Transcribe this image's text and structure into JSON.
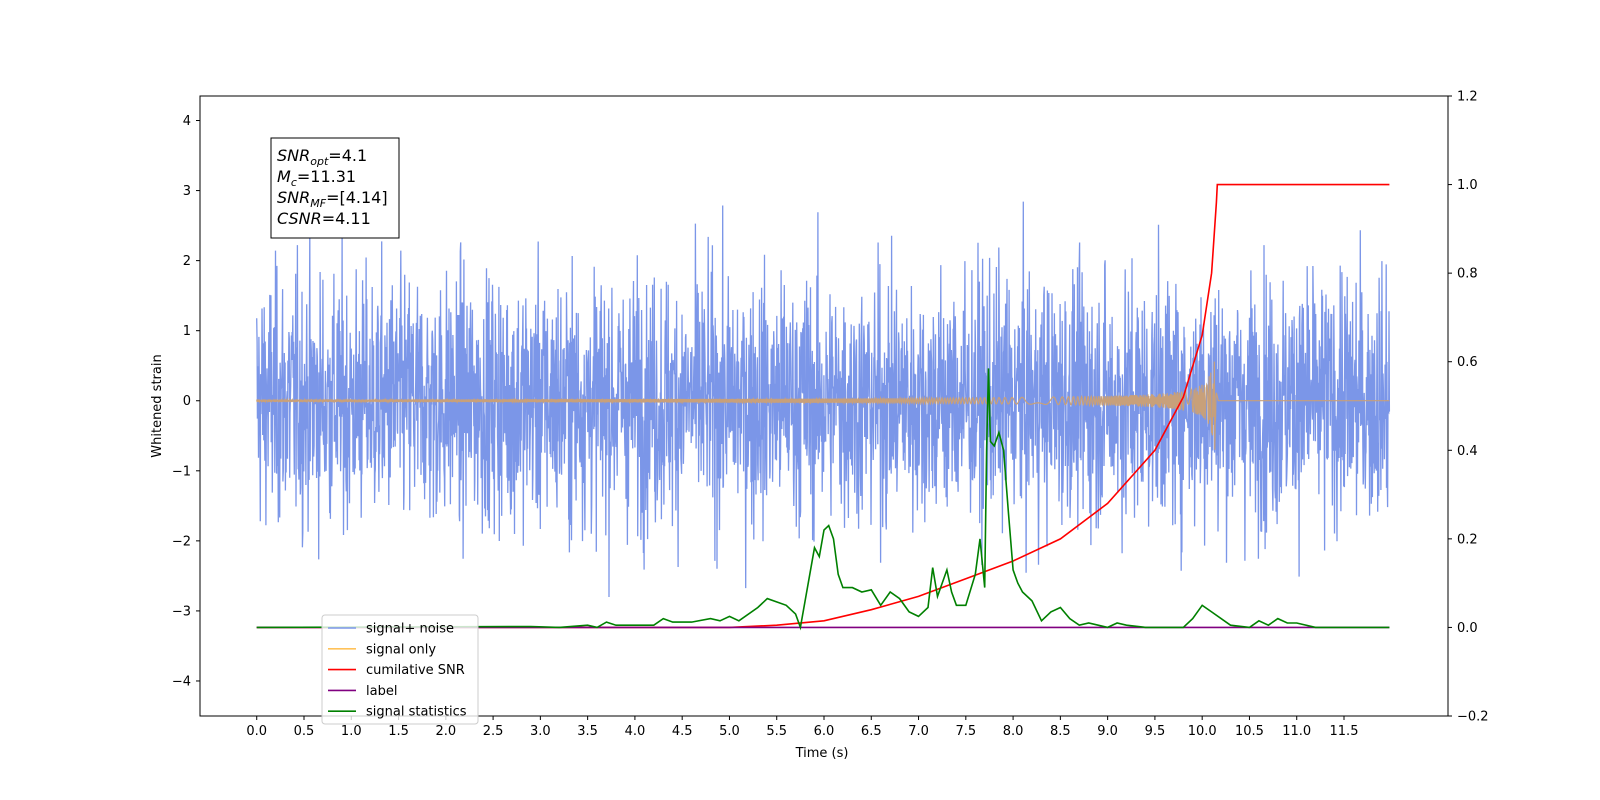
{
  "chart_data": {
    "type": "line",
    "xlabel": "Time (s)",
    "ylabel": "Whitened strain",
    "xlim": [
      -0.6,
      12.6
    ],
    "ylim": [
      -4.5,
      4.35
    ],
    "y2lim": [
      -0.2,
      1.2
    ],
    "x_ticks": [
      "0.0",
      "0.5",
      "1.0",
      "1.5",
      "2.0",
      "2.5",
      "3.0",
      "3.5",
      "4.0",
      "4.5",
      "5.0",
      "5.5",
      "6.0",
      "6.5",
      "7.0",
      "7.5",
      "8.0",
      "8.5",
      "9.0",
      "9.5",
      "10.0",
      "10.5",
      "11.0",
      "11.5"
    ],
    "y_ticks": [
      "4",
      "3",
      "2",
      "1",
      "0",
      "−1",
      "−2",
      "−3",
      "−4"
    ],
    "y2_ticks": [
      "1.2",
      "1.0",
      "0.8",
      "0.6",
      "0.4",
      "0.2",
      "0.0",
      "−0.2"
    ],
    "annotation": [
      {
        "base": "SNR",
        "sub": "opt",
        "rest": "=4.1"
      },
      {
        "base": "M",
        "sub": "c",
        "rest": "=11.31"
      },
      {
        "base": "SNR",
        "sub": "MF",
        "rest": "=[4.14]"
      },
      {
        "base": "CSNR",
        "sub": "",
        "rest": "=4.11"
      }
    ],
    "legend": {
      "placement": "lower-left",
      "entries": [
        {
          "label": "signal+ noise",
          "color": "#7b96e8"
        },
        {
          "label": "signal only",
          "color": "#ffc25a"
        },
        {
          "label": "cumilative SNR",
          "color": "#ff0000"
        },
        {
          "label": "label",
          "color": "#800080"
        },
        {
          "label": "signal statistics",
          "color": "#008000"
        }
      ]
    },
    "series": [
      {
        "name": "signal+ noise",
        "axis": "left",
        "color": "#7b96e8",
        "description_range": [
          -2.5,
          2.6
        ],
        "x_range": [
          0.0,
          11.98
        ]
      },
      {
        "name": "signal only",
        "axis": "left",
        "color": "#c8a07a",
        "chirp_end": 10.15,
        "peak_amplitude": 0.7
      },
      {
        "name": "cumilative SNR",
        "axis": "right",
        "color": "#ff0000",
        "x": [
          0.0,
          5.0,
          5.5,
          6.0,
          6.5,
          7.0,
          7.5,
          8.0,
          8.5,
          9.0,
          9.5,
          9.8,
          10.0,
          10.1,
          10.15,
          10.16,
          11.98
        ],
        "y": [
          0.0,
          0.0,
          0.005,
          0.015,
          0.04,
          0.07,
          0.11,
          0.15,
          0.2,
          0.28,
          0.4,
          0.52,
          0.66,
          0.8,
          0.96,
          1.0,
          1.0
        ]
      },
      {
        "name": "label",
        "axis": "right",
        "color": "#800080",
        "x": [
          0.0,
          11.98
        ],
        "y": [
          0.0,
          0.0
        ]
      },
      {
        "name": "signal statistics",
        "axis": "right",
        "color": "#008000",
        "x": [
          0.0,
          2.9,
          3.2,
          3.5,
          3.6,
          3.7,
          3.8,
          4.2,
          4.3,
          4.4,
          4.6,
          4.8,
          4.9,
          5.0,
          5.1,
          5.3,
          5.4,
          5.6,
          5.7,
          5.75,
          5.8,
          5.9,
          5.95,
          6.0,
          6.05,
          6.1,
          6.15,
          6.2,
          6.3,
          6.4,
          6.5,
          6.6,
          6.7,
          6.8,
          6.9,
          7.0,
          7.1,
          7.15,
          7.2,
          7.3,
          7.35,
          7.4,
          7.5,
          7.6,
          7.65,
          7.7,
          7.72,
          7.74,
          7.76,
          7.8,
          7.85,
          7.9,
          7.95,
          8.0,
          8.05,
          8.1,
          8.2,
          8.3,
          8.4,
          8.5,
          8.6,
          8.7,
          8.8,
          8.9,
          9.0,
          9.1,
          9.2,
          9.4,
          9.8,
          9.9,
          10.0,
          10.1,
          10.3,
          10.5,
          10.6,
          10.7,
          10.8,
          10.9,
          11.0,
          11.2,
          11.98
        ],
        "y": [
          0.0,
          0.002,
          0.0,
          0.005,
          0.0,
          0.012,
          0.005,
          0.005,
          0.02,
          0.012,
          0.012,
          0.02,
          0.015,
          0.025,
          0.015,
          0.045,
          0.065,
          0.05,
          0.03,
          0.0,
          0.06,
          0.18,
          0.16,
          0.22,
          0.23,
          0.2,
          0.12,
          0.09,
          0.09,
          0.08,
          0.085,
          0.05,
          0.08,
          0.065,
          0.035,
          0.025,
          0.045,
          0.135,
          0.07,
          0.13,
          0.08,
          0.05,
          0.05,
          0.12,
          0.2,
          0.09,
          0.4,
          0.585,
          0.42,
          0.41,
          0.44,
          0.4,
          0.26,
          0.13,
          0.1,
          0.08,
          0.06,
          0.015,
          0.035,
          0.045,
          0.02,
          0.005,
          0.01,
          0.005,
          0.0,
          0.01,
          0.005,
          0.0,
          0.0,
          0.02,
          0.05,
          0.035,
          0.005,
          0.0,
          0.015,
          0.005,
          0.02,
          0.01,
          0.01,
          0.0,
          0.0
        ]
      }
    ]
  }
}
